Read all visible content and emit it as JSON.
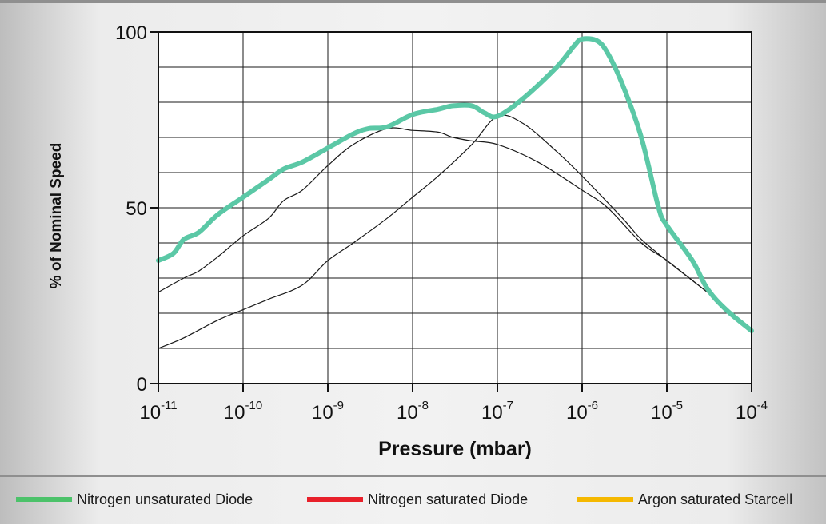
{
  "chart_data": {
    "type": "line",
    "xlabel": "Pressure (mbar)",
    "ylabel": "% of Nominal Speed",
    "xscale": "log",
    "xlim": [
      1e-11,
      0.0001
    ],
    "ylim": [
      0,
      100
    ],
    "x_ticks": [
      {
        "base": "10",
        "exp": "-11"
      },
      {
        "base": "10",
        "exp": "-10"
      },
      {
        "base": "10",
        "exp": "-9"
      },
      {
        "base": "10",
        "exp": "-8"
      },
      {
        "base": "10",
        "exp": "-7"
      },
      {
        "base": "10",
        "exp": "-6"
      },
      {
        "base": "10",
        "exp": "-5"
      },
      {
        "base": "10",
        "exp": "-4"
      }
    ],
    "y_ticks": [
      "0",
      "50",
      "100"
    ],
    "grid": true,
    "legend_position": "bottom",
    "series": [
      {
        "name": "Nitrogen unsaturated Diode",
        "color": "#5bc8a6",
        "legend_color": "#4cc26a",
        "width": 6,
        "points": [
          [
            1e-11,
            35
          ],
          [
            1.5e-11,
            37
          ],
          [
            2e-11,
            41
          ],
          [
            3e-11,
            43
          ],
          [
            5e-11,
            48
          ],
          [
            1e-10,
            53
          ],
          [
            2e-10,
            58
          ],
          [
            3e-10,
            61
          ],
          [
            5e-10,
            63
          ],
          [
            1e-09,
            67
          ],
          [
            2e-09,
            71
          ],
          [
            3e-09,
            72.5
          ],
          [
            5e-09,
            73
          ],
          [
            1e-08,
            76.5
          ],
          [
            2e-08,
            78
          ],
          [
            3e-08,
            79
          ],
          [
            5e-08,
            79
          ],
          [
            7e-08,
            77
          ],
          [
            1e-07,
            76
          ],
          [
            2e-07,
            81
          ],
          [
            5e-07,
            90
          ],
          [
            8e-07,
            96
          ],
          [
            1e-06,
            98
          ],
          [
            1.5e-06,
            97.5
          ],
          [
            2e-06,
            94
          ],
          [
            3e-06,
            85
          ],
          [
            5e-06,
            70
          ],
          [
            8e-06,
            50
          ],
          [
            1e-05,
            45
          ],
          [
            2e-05,
            35
          ],
          [
            3e-05,
            27
          ],
          [
            5e-05,
            21
          ],
          [
            0.0001,
            15
          ]
        ]
      },
      {
        "name": "Nitrogen saturated Diode",
        "color": "#1a1a1a",
        "legend_color": "#e8202a",
        "width": 1.2,
        "points": [
          [
            1e-11,
            26
          ],
          [
            2e-11,
            30
          ],
          [
            3e-11,
            32
          ],
          [
            5e-11,
            36
          ],
          [
            1e-10,
            42
          ],
          [
            2e-10,
            47
          ],
          [
            3e-10,
            52
          ],
          [
            5e-10,
            55
          ],
          [
            1e-09,
            62
          ],
          [
            2e-09,
            68
          ],
          [
            5e-09,
            72.5
          ],
          [
            1e-08,
            72
          ],
          [
            2e-08,
            71.5
          ],
          [
            3e-08,
            70
          ],
          [
            5e-08,
            69
          ],
          [
            1e-07,
            68
          ],
          [
            3e-07,
            63
          ],
          [
            1e-06,
            55
          ],
          [
            2e-06,
            50
          ],
          [
            5e-06,
            40
          ],
          [
            1e-05,
            35
          ],
          [
            3e-05,
            26
          ]
        ]
      },
      {
        "name": "Argon saturated Starcell",
        "color": "#1a1a1a",
        "legend_color": "#f5b800",
        "width": 1.2,
        "points": [
          [
            1e-11,
            10
          ],
          [
            2e-11,
            13
          ],
          [
            5e-11,
            18
          ],
          [
            1e-10,
            21
          ],
          [
            2e-10,
            24
          ],
          [
            5e-10,
            28
          ],
          [
            1e-09,
            35
          ],
          [
            2e-09,
            40
          ],
          [
            5e-09,
            47
          ],
          [
            1e-08,
            53
          ],
          [
            2e-08,
            59
          ],
          [
            5e-08,
            68
          ],
          [
            1e-07,
            76
          ],
          [
            2e-07,
            74
          ],
          [
            5e-07,
            66
          ],
          [
            1e-06,
            59
          ],
          [
            3e-06,
            47
          ],
          [
            5e-06,
            41
          ],
          [
            1e-05,
            35
          ],
          [
            3e-05,
            26
          ]
        ]
      }
    ]
  }
}
